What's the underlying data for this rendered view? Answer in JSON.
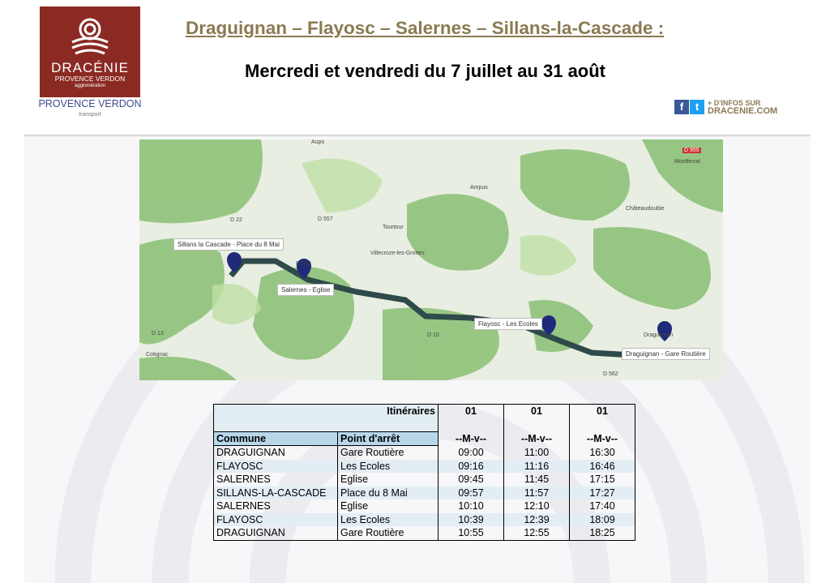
{
  "logo": {
    "name": "DRACÉNIE",
    "sub": "PROVENCE VERDON",
    "sub2": "agglomération",
    "brand": "PROVENCE VERDON",
    "brand_sub": "transport",
    "color": "#8b2a23"
  },
  "header": {
    "title": "Draguignan – Flayosc – Salernes – Sillans-la-Cascade :",
    "subtitle": "Mercredi et vendredi du 7 juillet au 31 août"
  },
  "social": {
    "facebook_icon": "facebook-icon",
    "twitter_icon": "twitter-icon",
    "line1": "+ D'INFOS SUR",
    "line2": "DRACENIE.COM"
  },
  "map": {
    "stops": [
      "Sillans la Cascade - Place du 8 Mai",
      "Salernes - Eglise",
      "Flayosc - Les Ecoles",
      "Draguignan - Gare Routière"
    ],
    "places": [
      "Aups",
      "Tourtour",
      "Ampus",
      "Villecroze-les-Grottes",
      "Cotignac",
      "Montferrat",
      "Châteaudouble",
      "Draguignan",
      "D 22",
      "D 557",
      "D 560",
      "D 13",
      "D 10",
      "D 955",
      "D 562"
    ]
  },
  "table": {
    "itin_label": "Itinéraires",
    "itin": [
      "01",
      "01",
      "01"
    ],
    "headers": [
      "Commune",
      "Point d'arrêt"
    ],
    "days": [
      "--M-v--",
      "--M-v--",
      "--M-v--"
    ],
    "rows": [
      {
        "commune": "DRAGUIGNAN",
        "stop": "Gare Routière",
        "times": [
          "09:00",
          "11:00",
          "16:30"
        ]
      },
      {
        "commune": "FLAYOSC",
        "stop": "Les Ecoles",
        "times": [
          "09:16",
          "11:16",
          "16:46"
        ]
      },
      {
        "commune": "SALERNES",
        "stop": "Eglise",
        "times": [
          "09:45",
          "11:45",
          "17:15"
        ]
      },
      {
        "commune": "SILLANS-LA-CASCADE",
        "stop": "Place du 8 Mai",
        "times": [
          "09:57",
          "11:57",
          "17:27"
        ]
      },
      {
        "commune": "SALERNES",
        "stop": "Eglise",
        "times": [
          "10:10",
          "12:10",
          "17:40"
        ]
      },
      {
        "commune": "FLAYOSC",
        "stop": "Les Ecoles",
        "times": [
          "10:39",
          "12:39",
          "18:09"
        ]
      },
      {
        "commune": "DRAGUIGNAN",
        "stop": "Gare Routière",
        "times": [
          "10:55",
          "12:55",
          "18:25"
        ]
      }
    ]
  }
}
